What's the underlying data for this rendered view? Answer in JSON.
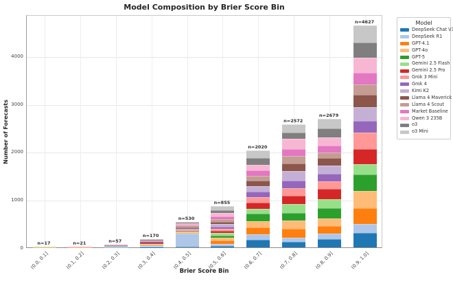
{
  "chart_data": {
    "type": "bar",
    "variant": "stacked",
    "title": "Model Composition by Brier Score Bin",
    "xlabel": "Brier Score Bin",
    "ylabel": "Number of Forecasts",
    "legend_title": "Model",
    "legend_position": "upper-right-outside",
    "grid": true,
    "ylim": [
      0,
      4860
    ],
    "yticks": [
      0,
      1000,
      2000,
      3000,
      4000
    ],
    "categories": [
      "(0.0, 0.1]",
      "(0.1, 0.2]",
      "(0.2, 0.3]",
      "(0.3, 0.4]",
      "(0.4, 0.5]",
      "(0.5, 0.6]",
      "(0.6, 0.7]",
      "(0.7, 0.8]",
      "(0.8, 0.9]",
      "(0.9, 1.0]"
    ],
    "bar_totals": [
      17,
      21,
      57,
      170,
      530,
      855,
      2020,
      2572,
      2679,
      4627
    ],
    "bar_labels": [
      "n=17",
      "n=21",
      "n=57",
      "n=170",
      "n=530",
      "n=855",
      "n=2020",
      "n=2572",
      "n=2679",
      "n=4627"
    ],
    "series": [
      {
        "name": "DeepSeek Chat V3",
        "color": "#1f77b4",
        "values": [
          1,
          1,
          2,
          5,
          10,
          25,
          151,
          112,
          170,
          295
        ]
      },
      {
        "name": "DeepSeek R1",
        "color": "#aec7e8",
        "values": [
          2,
          2,
          5,
          25,
          280,
          50,
          115,
          82,
          111,
          195
        ]
      },
      {
        "name": "GPT-4.1",
        "color": "#ff7f0e",
        "values": [
          1,
          1,
          3,
          10,
          15,
          72,
          144,
          197,
          168,
          330
        ]
      },
      {
        "name": "GPT-4o",
        "color": "#ffbb78",
        "values": [
          2,
          2,
          6,
          35,
          15,
          57,
          134,
          167,
          152,
          350
        ]
      },
      {
        "name": "GPT-5",
        "color": "#2ca02c",
        "values": [
          1,
          1,
          2,
          5,
          5,
          43,
          154,
          164,
          222,
          350
        ]
      },
      {
        "name": "Gemini 2.5 Flash",
        "color": "#98df8a",
        "values": [
          1,
          1,
          3,
          5,
          5,
          48,
          110,
          182,
          177,
          212
        ]
      },
      {
        "name": "Gemini 2.5 Pro",
        "color": "#d62728",
        "values": [
          1,
          1,
          3,
          5,
          15,
          43,
          120,
          168,
          216,
          315
        ]
      },
      {
        "name": "Grok 3 Mini",
        "color": "#ff9896",
        "values": [
          1,
          2,
          4,
          10,
          20,
          48,
          119,
          168,
          163,
          350
        ]
      },
      {
        "name": "Grok 4",
        "color": "#9467bd",
        "values": [
          1,
          1,
          2,
          5,
          5,
          38,
          111,
          153,
          153,
          248
        ]
      },
      {
        "name": "Kimi K2",
        "color": "#c5b0d5",
        "values": [
          1,
          1,
          4,
          10,
          20,
          58,
          115,
          193,
          173,
          282
        ]
      },
      {
        "name": "Llama 4 Maverick",
        "color": "#8c564b",
        "values": [
          1,
          1,
          3,
          5,
          30,
          43,
          111,
          158,
          154,
          252
        ]
      },
      {
        "name": "Llama 4 Scout",
        "color": "#c49c94",
        "values": [
          1,
          2,
          5,
          15,
          45,
          58,
          110,
          158,
          124,
          218
        ]
      },
      {
        "name": "Market Baseline",
        "color": "#e377c2",
        "values": [
          1,
          1,
          3,
          5,
          10,
          57,
          106,
          153,
          144,
          242
        ]
      },
      {
        "name": "Qwen 3 235B",
        "color": "#f7b6d2",
        "values": [
          1,
          2,
          6,
          20,
          40,
          82,
          119,
          216,
          168,
          312
        ]
      },
      {
        "name": "o3",
        "color": "#7f7f7f",
        "values": [
          0,
          1,
          3,
          5,
          5,
          48,
          144,
          120,
          191,
          315
        ]
      },
      {
        "name": "o3 Mini",
        "color": "#c7c7c7",
        "values": [
          1,
          1,
          3,
          5,
          10,
          85,
          157,
          181,
          193,
          361
        ]
      }
    ],
    "style": {
      "grid_color_h": "#e7e7e7",
      "grid_color_v": "#ededed",
      "tick_text_color": "#444444",
      "title_color": "#262626"
    }
  }
}
